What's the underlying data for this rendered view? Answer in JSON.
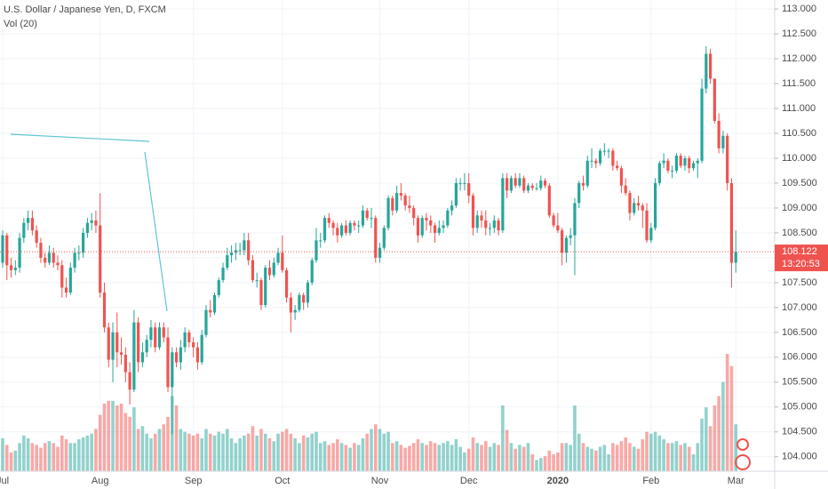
{
  "chart_data": {
    "type": "candlestick",
    "title": "U.S. Dollar / Japanese Yen, D, FXCM",
    "subtitle": "Vol (20)",
    "up_color": "#26a69a",
    "down_color": "#ef5350",
    "grid": true,
    "ylim": [
      103.71,
      113.18
    ],
    "yticks": [
      {
        "value": 104,
        "label": "104.000"
      },
      {
        "value": 104.5,
        "label": "104.500"
      },
      {
        "value": 105,
        "label": "105.000"
      },
      {
        "value": 105.5,
        "label": "105.500"
      },
      {
        "value": 106,
        "label": "106.000"
      },
      {
        "value": 106.5,
        "label": "106.500"
      },
      {
        "value": 107,
        "label": "107.000"
      },
      {
        "value": 107.5,
        "label": "107.500"
      },
      {
        "value": 108,
        "label": "108.000"
      },
      {
        "value": 108.5,
        "label": "108.500"
      },
      {
        "value": 109,
        "label": "109.000"
      },
      {
        "value": 109.5,
        "label": "109.500"
      },
      {
        "value": 110,
        "label": "110.000"
      },
      {
        "value": 110.5,
        "label": "110.500"
      },
      {
        "value": 111,
        "label": "111.000"
      },
      {
        "value": 111.5,
        "label": "111.500"
      },
      {
        "value": 112,
        "label": "112.000"
      },
      {
        "value": 112.5,
        "label": "112.500"
      },
      {
        "value": 113,
        "label": "113.000"
      }
    ],
    "last_price": 108.122,
    "countdown": "13:20:53",
    "categories": [
      "Jul",
      null,
      null,
      null,
      null,
      null,
      null,
      null,
      null,
      null,
      null,
      null,
      null,
      null,
      null,
      null,
      null,
      null,
      null,
      null,
      null,
      null,
      null,
      "Aug",
      null,
      null,
      null,
      null,
      null,
      null,
      null,
      null,
      null,
      null,
      null,
      null,
      null,
      null,
      null,
      null,
      null,
      null,
      null,
      null,
      null,
      "Sep",
      null,
      null,
      null,
      null,
      null,
      null,
      null,
      null,
      null,
      null,
      null,
      null,
      null,
      null,
      null,
      null,
      null,
      null,
      null,
      null,
      "Oct",
      null,
      null,
      null,
      null,
      null,
      null,
      null,
      null,
      null,
      null,
      null,
      null,
      null,
      null,
      null,
      null,
      null,
      null,
      null,
      null,
      null,
      null,
      "Nov",
      null,
      null,
      null,
      null,
      null,
      null,
      null,
      null,
      null,
      null,
      null,
      null,
      null,
      null,
      null,
      null,
      null,
      null,
      null,
      null,
      "Dec",
      null,
      null,
      null,
      null,
      null,
      null,
      null,
      null,
      null,
      null,
      null,
      null,
      null,
      null,
      null,
      null,
      null,
      null,
      null,
      null,
      "2020",
      null,
      null,
      null,
      null,
      null,
      null,
      null,
      null,
      null,
      null,
      null,
      null,
      null,
      null,
      null,
      null,
      null,
      null,
      null,
      null,
      null,
      "Feb",
      null,
      null,
      null,
      null,
      null,
      null,
      null,
      null,
      null,
      null,
      null,
      null,
      null,
      null,
      null,
      null,
      null,
      null,
      null,
      "Mar"
    ],
    "candles": [
      [
        107.9,
        108.55,
        107.8,
        108.45
      ],
      [
        108.45,
        108.5,
        107.55,
        107.85
      ],
      [
        107.85,
        108.0,
        107.6,
        107.75
      ],
      [
        107.75,
        107.95,
        107.65,
        107.8
      ],
      [
        107.8,
        108.5,
        107.7,
        108.4
      ],
      [
        108.4,
        108.8,
        108.3,
        108.7
      ],
      [
        108.7,
        108.95,
        108.55,
        108.8
      ],
      [
        108.8,
        108.95,
        108.45,
        108.55
      ],
      [
        108.55,
        108.65,
        108.2,
        108.3
      ],
      [
        108.3,
        108.4,
        107.9,
        108.0
      ],
      [
        108.0,
        108.1,
        107.8,
        107.9
      ],
      [
        107.9,
        108.25,
        107.85,
        108.1
      ],
      [
        108.1,
        108.2,
        107.8,
        107.9
      ],
      [
        107.9,
        108.05,
        107.75,
        107.85
      ],
      [
        107.85,
        107.95,
        107.2,
        107.4
      ],
      [
        107.4,
        107.6,
        107.2,
        107.3
      ],
      [
        107.3,
        107.9,
        107.25,
        107.8
      ],
      [
        107.8,
        108.2,
        107.7,
        108.1
      ],
      [
        108.1,
        108.25,
        107.95,
        108.1
      ],
      [
        108.1,
        108.6,
        108.0,
        108.5
      ],
      [
        108.5,
        108.8,
        108.4,
        108.7
      ],
      [
        108.7,
        108.9,
        108.55,
        108.75
      ],
      [
        108.75,
        108.95,
        108.5,
        108.65
      ],
      [
        108.65,
        109.3,
        107.2,
        107.3
      ],
      [
        107.3,
        107.5,
        106.5,
        106.6
      ],
      [
        106.6,
        106.7,
        105.8,
        105.95
      ],
      [
        105.95,
        106.7,
        105.5,
        106.5
      ],
      [
        106.5,
        106.9,
        105.8,
        106.1
      ],
      [
        106.1,
        106.4,
        105.85,
        106.05
      ],
      [
        106.05,
        106.2,
        105.5,
        105.7
      ],
      [
        105.7,
        105.9,
        105.05,
        105.35
      ],
      [
        105.35,
        106.95,
        105.3,
        106.7
      ],
      [
        106.7,
        106.8,
        105.7,
        105.9
      ],
      [
        105.9,
        106.3,
        105.8,
        106.1
      ],
      [
        106.1,
        106.45,
        106.0,
        106.35
      ],
      [
        106.35,
        106.75,
        106.2,
        106.6
      ],
      [
        106.6,
        106.7,
        106.1,
        106.2
      ],
      [
        106.2,
        106.7,
        106.15,
        106.6
      ],
      [
        106.6,
        106.7,
        106.3,
        106.4
      ],
      [
        106.4,
        106.6,
        105.3,
        105.4
      ],
      [
        105.4,
        106.2,
        104.45,
        106.1
      ],
      [
        106.1,
        106.2,
        105.8,
        105.9
      ],
      [
        105.9,
        106.35,
        105.75,
        106.2
      ],
      [
        106.2,
        106.6,
        106.1,
        106.5
      ],
      [
        106.5,
        106.55,
        106.2,
        106.3
      ],
      [
        106.3,
        106.4,
        106.0,
        106.2
      ],
      [
        106.2,
        106.3,
        105.75,
        105.9
      ],
      [
        105.9,
        106.55,
        105.85,
        106.45
      ],
      [
        106.45,
        107.05,
        106.4,
        106.95
      ],
      [
        106.95,
        107.15,
        106.8,
        106.9
      ],
      [
        106.9,
        107.3,
        106.85,
        107.25
      ],
      [
        107.25,
        107.6,
        107.2,
        107.55
      ],
      [
        107.55,
        107.9,
        107.5,
        107.8
      ],
      [
        107.8,
        108.2,
        107.75,
        108.05
      ],
      [
        108.05,
        108.25,
        107.9,
        108.1
      ],
      [
        108.1,
        108.3,
        107.95,
        108.15
      ],
      [
        108.15,
        108.3,
        108.05,
        108.15
      ],
      [
        108.15,
        108.5,
        108.05,
        108.35
      ],
      [
        108.35,
        108.5,
        107.85,
        107.95
      ],
      [
        107.95,
        108.05,
        107.5,
        107.55
      ],
      [
        107.55,
        107.7,
        107.4,
        107.55
      ],
      [
        107.55,
        107.6,
        106.95,
        107.05
      ],
      [
        107.05,
        107.85,
        107.0,
        107.8
      ],
      [
        107.8,
        107.95,
        107.55,
        107.65
      ],
      [
        107.65,
        108.0,
        107.6,
        107.9
      ],
      [
        107.9,
        108.2,
        107.85,
        108.1
      ],
      [
        108.1,
        108.45,
        107.7,
        107.75
      ],
      [
        107.75,
        107.8,
        107.1,
        107.2
      ],
      [
        107.2,
        107.3,
        106.5,
        106.9
      ],
      [
        106.9,
        107.05,
        106.75,
        106.95
      ],
      [
        106.95,
        107.3,
        106.9,
        107.25
      ],
      [
        107.25,
        107.3,
        106.95,
        107.1
      ],
      [
        107.1,
        107.55,
        107.0,
        107.5
      ],
      [
        107.5,
        108.0,
        107.45,
        107.95
      ],
      [
        107.95,
        108.6,
        107.9,
        108.35
      ],
      [
        108.35,
        108.5,
        108.2,
        108.35
      ],
      [
        108.35,
        108.85,
        108.3,
        108.8
      ],
      [
        108.8,
        108.9,
        108.6,
        108.7
      ],
      [
        108.7,
        108.75,
        108.45,
        108.6
      ],
      [
        108.6,
        108.7,
        108.3,
        108.45
      ],
      [
        108.45,
        108.7,
        108.4,
        108.65
      ],
      [
        108.65,
        108.75,
        108.45,
        108.5
      ],
      [
        108.5,
        108.75,
        108.45,
        108.7
      ],
      [
        108.7,
        108.75,
        108.55,
        108.65
      ],
      [
        108.65,
        108.75,
        108.5,
        108.65
      ],
      [
        108.65,
        109.05,
        108.6,
        108.95
      ],
      [
        108.95,
        109.0,
        108.75,
        108.8
      ],
      [
        108.8,
        109.0,
        108.6,
        108.8
      ],
      [
        108.8,
        108.85,
        107.9,
        108.0
      ],
      [
        108.0,
        108.3,
        107.9,
        108.2
      ],
      [
        108.2,
        108.65,
        108.15,
        108.6
      ],
      [
        108.6,
        109.25,
        108.55,
        109.2
      ],
      [
        109.2,
        109.25,
        108.85,
        108.95
      ],
      [
        108.95,
        109.45,
        108.9,
        109.3
      ],
      [
        109.3,
        109.5,
        109.15,
        109.25
      ],
      [
        109.25,
        109.3,
        108.95,
        109.05
      ],
      [
        109.05,
        109.25,
        108.9,
        109.0
      ],
      [
        109.0,
        109.05,
        108.65,
        108.8
      ],
      [
        108.8,
        108.85,
        108.3,
        108.45
      ],
      [
        108.45,
        108.85,
        108.4,
        108.8
      ],
      [
        108.8,
        108.9,
        108.55,
        108.75
      ],
      [
        108.75,
        108.85,
        108.5,
        108.65
      ],
      [
        108.65,
        108.7,
        108.3,
        108.5
      ],
      [
        108.5,
        108.75,
        108.45,
        108.6
      ],
      [
        108.6,
        108.75,
        108.5,
        108.65
      ],
      [
        108.65,
        109.0,
        108.6,
        108.95
      ],
      [
        108.95,
        109.15,
        108.85,
        109.05
      ],
      [
        109.05,
        109.6,
        109.0,
        109.5
      ],
      [
        109.5,
        109.6,
        109.35,
        109.5
      ],
      [
        109.5,
        109.7,
        109.35,
        109.5
      ],
      [
        109.5,
        109.7,
        109.1,
        109.25
      ],
      [
        109.25,
        109.3,
        108.45,
        108.6
      ],
      [
        108.6,
        108.95,
        108.5,
        108.85
      ],
      [
        108.85,
        108.95,
        108.6,
        108.75
      ],
      [
        108.75,
        108.95,
        108.45,
        108.6
      ],
      [
        108.6,
        108.7,
        108.45,
        108.6
      ],
      [
        108.6,
        108.85,
        108.5,
        108.75
      ],
      [
        108.75,
        108.8,
        108.45,
        108.55
      ],
      [
        108.55,
        109.7,
        108.5,
        109.6
      ],
      [
        109.6,
        109.7,
        109.2,
        109.35
      ],
      [
        109.35,
        109.65,
        109.3,
        109.6
      ],
      [
        109.6,
        109.7,
        109.4,
        109.45
      ],
      [
        109.45,
        109.7,
        109.4,
        109.6
      ],
      [
        109.6,
        109.65,
        109.3,
        109.35
      ],
      [
        109.35,
        109.5,
        109.3,
        109.45
      ],
      [
        109.45,
        109.5,
        109.35,
        109.4
      ],
      [
        109.4,
        109.5,
        109.35,
        109.4
      ],
      [
        109.4,
        109.65,
        109.35,
        109.55
      ],
      [
        109.55,
        109.6,
        109.4,
        109.45
      ],
      [
        109.45,
        109.5,
        108.8,
        108.85
      ],
      [
        108.85,
        108.9,
        108.6,
        108.65
      ],
      [
        108.65,
        108.9,
        108.5,
        108.55
      ],
      [
        108.55,
        108.6,
        107.85,
        108.1
      ],
      [
        108.1,
        108.45,
        107.9,
        108.4
      ],
      [
        108.4,
        108.6,
        108.25,
        108.45
      ],
      [
        108.45,
        109.2,
        107.65,
        109.1
      ],
      [
        109.1,
        109.55,
        109.0,
        109.5
      ],
      [
        109.5,
        109.65,
        109.35,
        109.45
      ],
      [
        109.45,
        110.05,
        109.4,
        109.95
      ],
      [
        109.95,
        110.2,
        109.8,
        109.95
      ],
      [
        109.95,
        110.0,
        109.8,
        109.9
      ],
      [
        109.9,
        110.2,
        109.85,
        110.15
      ],
      [
        110.15,
        110.3,
        110.05,
        110.15
      ],
      [
        110.15,
        110.2,
        110.0,
        110.15
      ],
      [
        110.15,
        110.2,
        109.75,
        109.85
      ],
      [
        109.85,
        109.95,
        109.75,
        109.8
      ],
      [
        109.8,
        109.85,
        109.3,
        109.45
      ],
      [
        109.45,
        109.6,
        109.25,
        109.3
      ],
      [
        109.3,
        109.35,
        108.75,
        108.9
      ],
      [
        108.9,
        109.2,
        108.85,
        109.1
      ],
      [
        109.1,
        109.25,
        108.95,
        109.05
      ],
      [
        109.05,
        109.1,
        108.6,
        108.95
      ],
      [
        108.95,
        109.1,
        108.3,
        108.35
      ],
      [
        108.35,
        108.7,
        108.3,
        108.6
      ],
      [
        108.6,
        109.6,
        108.55,
        109.5
      ],
      [
        109.5,
        109.95,
        109.45,
        109.9
      ],
      [
        109.9,
        110.1,
        109.8,
        109.95
      ],
      [
        109.95,
        110.0,
        109.7,
        109.75
      ],
      [
        109.75,
        109.85,
        109.6,
        109.75
      ],
      [
        109.75,
        110.1,
        109.7,
        110.05
      ],
      [
        110.05,
        110.1,
        109.8,
        109.85
      ],
      [
        109.85,
        110.05,
        109.75,
        110.0
      ],
      [
        110.0,
        110.05,
        109.7,
        109.8
      ],
      [
        109.8,
        109.95,
        109.75,
        109.9
      ],
      [
        109.9,
        110.0,
        109.6,
        109.95
      ],
      [
        109.95,
        111.6,
        109.9,
        111.4
      ],
      [
        111.4,
        112.25,
        111.3,
        112.1
      ],
      [
        112.1,
        112.2,
        111.5,
        111.6
      ],
      [
        111.6,
        111.6,
        110.7,
        110.75
      ],
      [
        110.75,
        110.9,
        110.1,
        110.2
      ],
      [
        110.2,
        110.55,
        110.1,
        110.45
      ],
      [
        110.45,
        110.5,
        109.35,
        109.5
      ],
      [
        109.5,
        109.6,
        107.4,
        107.9
      ],
      [
        107.9,
        108.55,
        107.7,
        108.12
      ]
    ],
    "volume": [
      35,
      28,
      20,
      22,
      30,
      38,
      35,
      30,
      28,
      25,
      30,
      32,
      30,
      26,
      38,
      34,
      30,
      30,
      34,
      36,
      38,
      40,
      45,
      60,
      72,
      75,
      75,
      70,
      72,
      62,
      58,
      68,
      45,
      48,
      40,
      35,
      40,
      45,
      50,
      58,
      80,
      70,
      45,
      42,
      40,
      38,
      40,
      35,
      45,
      40,
      38,
      42,
      40,
      45,
      35,
      30,
      35,
      38,
      40,
      48,
      38,
      45,
      40,
      35,
      32,
      40,
      42,
      45,
      40,
      35,
      30,
      38,
      36,
      40,
      42,
      30,
      32,
      28,
      30,
      34,
      30,
      28,
      25,
      30,
      28,
      35,
      40,
      45,
      50,
      45,
      40,
      42,
      30,
      32,
      28,
      25,
      27,
      30,
      34,
      30,
      28,
      32,
      30,
      28,
      30,
      32,
      28,
      34,
      26,
      20,
      24,
      36,
      30,
      28,
      32,
      26,
      30,
      28,
      70,
      44,
      30,
      24,
      28,
      26,
      30,
      18,
      12,
      14,
      16,
      22,
      18,
      20,
      30,
      30,
      28,
      70,
      40,
      30,
      26,
      24,
      22,
      26,
      28,
      18,
      30,
      28,
      32,
      36,
      30,
      26,
      24,
      34,
      42,
      40,
      42,
      38,
      34,
      30,
      30,
      32,
      28,
      30,
      26,
      18,
      30,
      56,
      68,
      48,
      70,
      80,
      95,
      125,
      112,
      50
    ]
  }
}
